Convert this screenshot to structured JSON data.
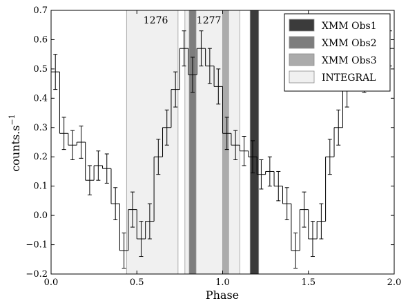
{
  "chart_data": {
    "type": "line",
    "step": true,
    "xlabel": "Phase",
    "ylabel": "counts.s",
    "ylabel_superscript": "−1",
    "xlim": [
      0.0,
      2.0
    ],
    "ylim": [
      -0.2,
      0.7
    ],
    "xticks": [
      "0.0",
      "0.5",
      "1.0",
      "1.5",
      "2.0"
    ],
    "xtick_values": [
      0.0,
      0.5,
      1.0,
      1.5,
      2.0
    ],
    "yticks": [
      "−0.2",
      "−0.1",
      "0.0",
      "0.1",
      "0.2",
      "0.3",
      "0.4",
      "0.5",
      "0.6",
      "0.7"
    ],
    "ytick_values": [
      -0.2,
      -0.1,
      0.0,
      0.1,
      0.2,
      0.3,
      0.4,
      0.5,
      0.6,
      0.7
    ],
    "grid": false,
    "legend_position": "top-right",
    "series": [
      {
        "bin_width": 0.05,
        "x": [
          0.025,
          0.075,
          0.125,
          0.175,
          0.225,
          0.275,
          0.325,
          0.375,
          0.425,
          0.475,
          0.525,
          0.575,
          0.625,
          0.675,
          0.725,
          0.775,
          0.825,
          0.875,
          0.925,
          0.975,
          1.025,
          1.075,
          1.125,
          1.175,
          1.225,
          1.275,
          1.325,
          1.375,
          1.425,
          1.475,
          1.525,
          1.575,
          1.625,
          1.675,
          1.725,
          1.775,
          1.825,
          1.875,
          1.925,
          1.975
        ],
        "y": [
          0.49,
          0.28,
          0.24,
          0.25,
          0.12,
          0.17,
          0.16,
          0.04,
          -0.12,
          0.02,
          -0.08,
          -0.02,
          0.2,
          0.3,
          0.43,
          0.57,
          0.48,
          0.57,
          0.51,
          0.44,
          0.28,
          0.24,
          0.22,
          0.2,
          0.14,
          0.15,
          0.1,
          0.04,
          -0.12,
          0.02,
          -0.08,
          -0.02,
          0.2,
          0.3,
          0.43,
          0.57,
          0.48,
          0.57,
          0.51,
          0.57
        ],
        "yerr": [
          0.06,
          0.055,
          0.05,
          0.055,
          0.05,
          0.05,
          0.05,
          0.055,
          0.06,
          0.06,
          0.06,
          0.06,
          0.06,
          0.06,
          0.06,
          0.06,
          0.06,
          0.06,
          0.06,
          0.06,
          0.055,
          0.05,
          0.05,
          0.055,
          0.05,
          0.05,
          0.05,
          0.055,
          0.06,
          0.06,
          0.06,
          0.06,
          0.06,
          0.06,
          0.06,
          0.06,
          0.06,
          0.06,
          0.06,
          0.06
        ]
      }
    ],
    "bands": [
      {
        "name": "INTEGRAL",
        "x0": 0.44,
        "x1": 0.74,
        "color": "#f0f0f0"
      },
      {
        "name": "INTEGRAL",
        "x0": 0.78,
        "x1": 1.1,
        "color": "#f0f0f0"
      },
      {
        "name": "XMM Obs2",
        "x0": 0.805,
        "x1": 0.845,
        "color": "#7d7d7d"
      },
      {
        "name": "XMM Obs3",
        "x0": 1.0,
        "x1": 1.035,
        "color": "#ababab"
      },
      {
        "name": "XMM Obs1",
        "x0": 1.16,
        "x1": 1.21,
        "color": "#3b3b3b"
      }
    ],
    "annotations": [
      {
        "text": "1276",
        "x": 0.61,
        "y": 0.655
      },
      {
        "text": "1277",
        "x": 0.92,
        "y": 0.655
      }
    ],
    "legend": [
      {
        "label": "XMM Obs1",
        "color": "#3b3b3b"
      },
      {
        "label": "XMM Obs2",
        "color": "#7d7d7d"
      },
      {
        "label": "XMM Obs3",
        "color": "#ababab"
      },
      {
        "label": "INTEGRAL",
        "color": "#f0f0f0"
      }
    ]
  }
}
